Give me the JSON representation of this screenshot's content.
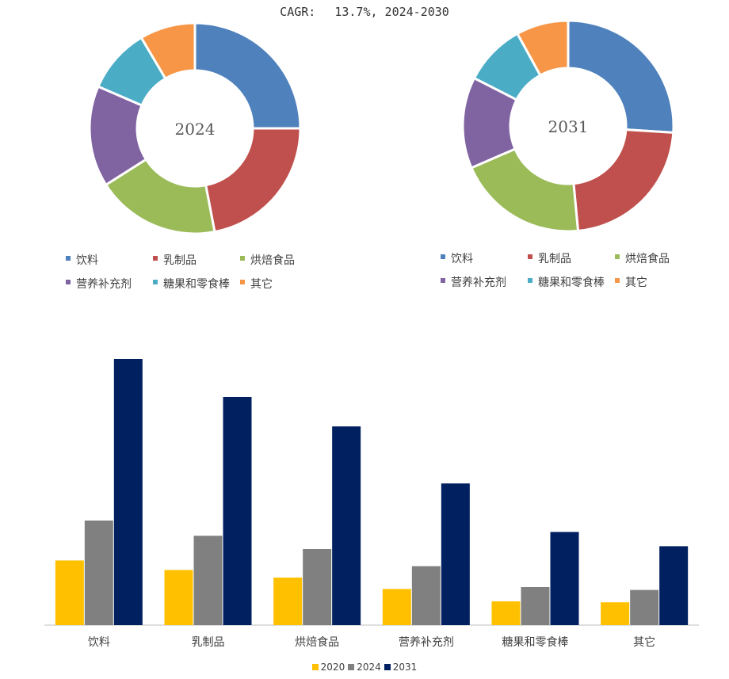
{
  "header": {
    "cagr_label": "CAGR:",
    "cagr_value": "13.7%, 2024-2030"
  },
  "colors": {
    "segments": [
      "#4F81BD",
      "#C0504D",
      "#9BBB59",
      "#8064A2",
      "#4BACC6",
      "#F79646"
    ],
    "bars": [
      "#FFC000",
      "#808080",
      "#002060"
    ]
  },
  "chart_data": [
    {
      "type": "pie",
      "subtype": "donut",
      "center_label": "2024",
      "categories": [
        "饮料",
        "乳制品",
        "烘焙食品",
        "营养补充剂",
        "糖果和零食棒",
        "其它"
      ],
      "values": [
        25.0,
        22.0,
        19.0,
        15.5,
        10.0,
        8.5
      ],
      "legend": [
        "饮料",
        "乳制品",
        "烘焙食品",
        "营养补充剂",
        "糖果和零食棒",
        "其它"
      ]
    },
    {
      "type": "pie",
      "subtype": "donut",
      "center_label": "2031",
      "categories": [
        "饮料",
        "乳制品",
        "烘焙食品",
        "营养补充剂",
        "糖果和零食棒",
        "其它"
      ],
      "values": [
        26.0,
        22.5,
        20.0,
        14.0,
        9.5,
        8.0
      ],
      "legend": [
        "饮料",
        "乳制品",
        "烘焙食品",
        "营养补充剂",
        "糖果和零食棒",
        "其它"
      ]
    },
    {
      "type": "bar",
      "categories": [
        "饮料",
        "乳制品",
        "烘焙食品",
        "营养补充剂",
        "糖果和零食棒",
        "其它"
      ],
      "series": [
        {
          "name": "2020",
          "values": [
            68,
            58,
            50,
            38,
            25,
            24
          ]
        },
        {
          "name": "2024",
          "values": [
            110,
            94,
            80,
            62,
            40,
            37
          ]
        },
        {
          "name": "2031",
          "values": [
            280,
            240,
            209,
            149,
            98,
            83
          ]
        }
      ],
      "ylim": [
        0,
        300
      ],
      "grid": false,
      "legend_position": "bottom-center"
    }
  ]
}
